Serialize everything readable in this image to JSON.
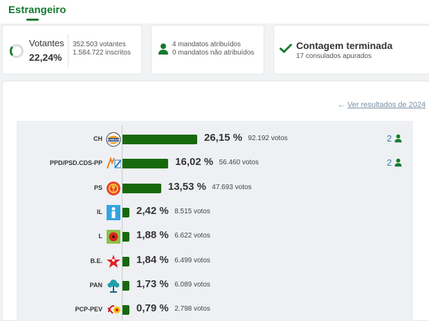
{
  "header": {
    "title": "Estrangeiro"
  },
  "summary": {
    "voters_label": "Votantes",
    "voters_pct": "22,24%",
    "voters_count": "352.503 votantes",
    "registered": "1.584.722 inscritos",
    "mandates_assigned": "4 mandatos atribuídos",
    "mandates_unassigned": "0 mandatos não atribuídos",
    "count_status": "Contagem terminada",
    "consulates": "17 consulados apurados"
  },
  "results": {
    "previous_link": "Ver resultados de 2024",
    "parties": [
      {
        "name": "CH",
        "pct": "26,15 %",
        "votes": "92.192 votos",
        "share": 26.15,
        "mandates": "2",
        "logo": "chega-logo-icon"
      },
      {
        "name": "PPD/PSD.CDS-PP",
        "pct": "16,02 %",
        "votes": "56.460 votos",
        "share": 16.02,
        "mandates": "2",
        "logo": "ad-coalition-logo-icon"
      },
      {
        "name": "PS",
        "pct": "13,53 %",
        "votes": "47.693 votos",
        "share": 13.53,
        "mandates": "",
        "logo": "ps-fist-rose-logo-icon"
      },
      {
        "name": "IL",
        "pct": "2,42 %",
        "votes": "8.515 votos",
        "share": 2.42,
        "mandates": "",
        "logo": "il-logo-icon"
      },
      {
        "name": "L",
        "pct": "1,88 %",
        "votes": "6.622 votos",
        "share": 1.88,
        "mandates": "",
        "logo": "livre-poppy-logo-icon"
      },
      {
        "name": "B.E.",
        "pct": "1,84 %",
        "votes": "6.499 votos",
        "share": 1.84,
        "mandates": "",
        "logo": "be-star-logo-icon"
      },
      {
        "name": "PAN",
        "pct": "1,73 %",
        "votes": "6.089 votos",
        "share": 1.73,
        "mandates": "",
        "logo": "pan-tree-logo-icon"
      },
      {
        "name": "PCP-PEV",
        "pct": "0,79 %",
        "votes": "2.798 votos",
        "share": 0.79,
        "mandates": "",
        "logo": "cdu-logo-icon"
      }
    ]
  },
  "colors": {
    "accent": "#157a2f",
    "bar": "#17690d",
    "link": "#7a8fa3",
    "mandates": "#3a7fb0"
  }
}
